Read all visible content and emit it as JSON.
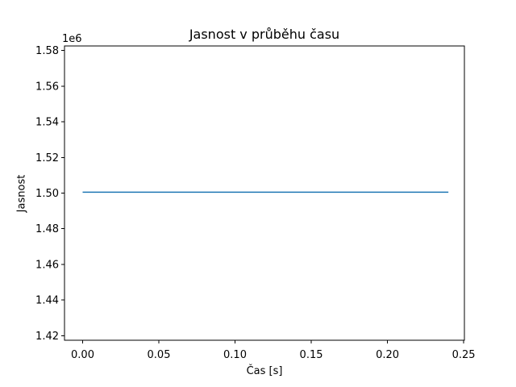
{
  "figure": {
    "background": "#ffffff"
  },
  "chart_data": {
    "type": "line",
    "title": "Jasnost v průběhu času",
    "xlabel": "Čas [s]",
    "ylabel": "Jasnost",
    "y_offset_label": "1e6",
    "grid": false,
    "legend": false,
    "xlim": [
      -0.0119,
      0.2505
    ],
    "ylim": [
      1417500,
      1582500
    ],
    "xticks": {
      "values": [
        0.0,
        0.05,
        0.1,
        0.15,
        0.2,
        0.25
      ],
      "labels": [
        "0.00",
        "0.05",
        "0.10",
        "0.15",
        "0.20",
        "0.25"
      ]
    },
    "yticks": {
      "values": [
        1420000,
        1440000,
        1460000,
        1480000,
        1500000,
        1520000,
        1540000,
        1560000,
        1580000
      ],
      "labels": [
        "1.42",
        "1.44",
        "1.46",
        "1.48",
        "1.50",
        "1.52",
        "1.54",
        "1.56",
        "1.58"
      ]
    },
    "series": [
      {
        "name": "Jasnost",
        "color": "#1f77b4",
        "line_width": 1.5,
        "x": [
          0.0,
          0.24
        ],
        "y": [
          1500500,
          1500500
        ]
      }
    ],
    "axis_color": "#000000",
    "text_color": "#000000"
  }
}
